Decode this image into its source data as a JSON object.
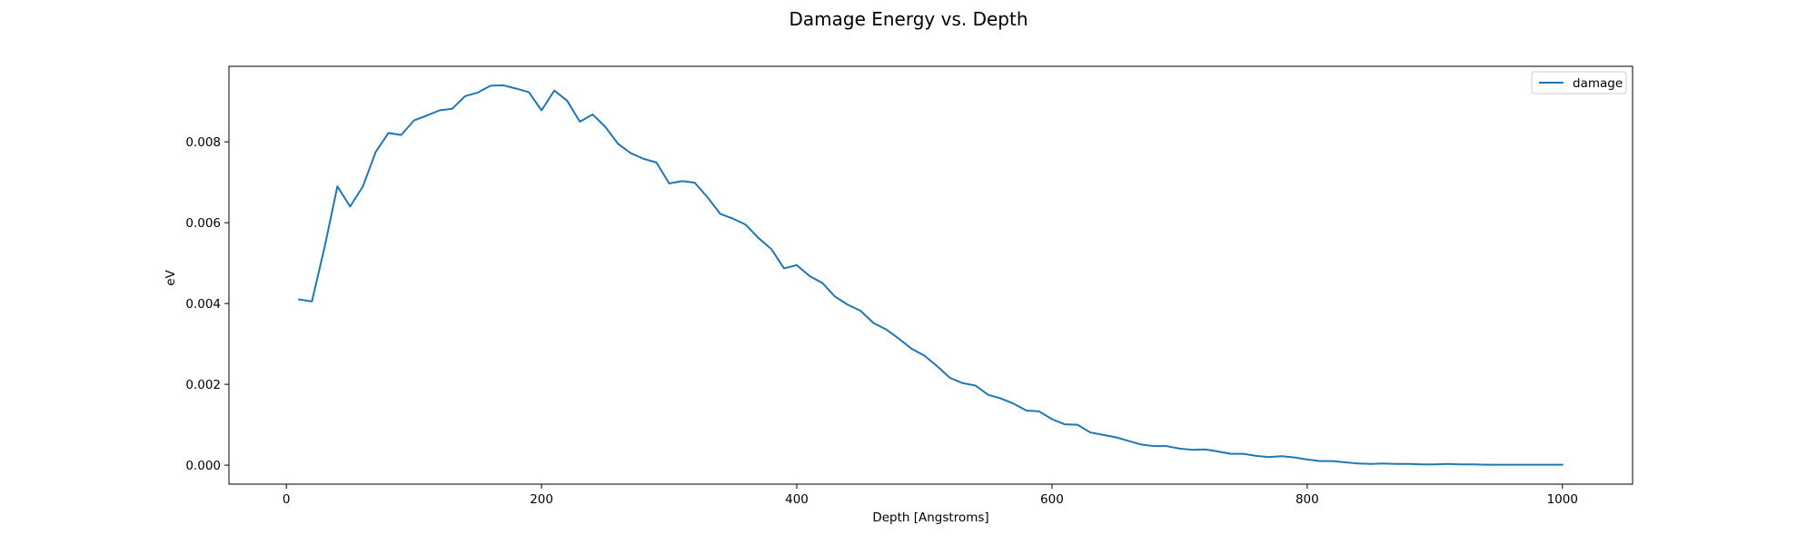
{
  "chart_data": {
    "type": "line",
    "title": "Damage Energy vs. Depth",
    "xlabel": "Depth [Angstroms]",
    "ylabel": "eV",
    "xlim": [
      -45,
      1055
    ],
    "ylim": [
      -0.00047,
      0.00987
    ],
    "xticks": [
      0,
      200,
      400,
      600,
      800,
      1000
    ],
    "xtick_labels": [
      "0",
      "200",
      "400",
      "600",
      "800",
      "1000"
    ],
    "yticks": [
      0.0,
      0.002,
      0.004,
      0.006,
      0.008
    ],
    "ytick_labels": [
      "0.000",
      "0.002",
      "0.004",
      "0.006",
      "0.008"
    ],
    "grid": false,
    "legend_position": "upper right",
    "series": [
      {
        "name": "damage",
        "color": "#1f77b4",
        "x": [
          10,
          20,
          30,
          40,
          50,
          60,
          70,
          80,
          90,
          100,
          110,
          120,
          130,
          140,
          150,
          160,
          170,
          180,
          190,
          200,
          210,
          220,
          230,
          240,
          250,
          260,
          270,
          280,
          290,
          300,
          310,
          320,
          330,
          340,
          350,
          360,
          370,
          380,
          390,
          400,
          410,
          420,
          430,
          440,
          450,
          460,
          470,
          480,
          490,
          500,
          510,
          520,
          530,
          540,
          550,
          560,
          570,
          580,
          590,
          600,
          610,
          620,
          630,
          640,
          650,
          660,
          670,
          680,
          690,
          700,
          710,
          720,
          730,
          740,
          750,
          760,
          770,
          780,
          790,
          800,
          810,
          820,
          830,
          840,
          850,
          860,
          870,
          880,
          890,
          900,
          910,
          920,
          930,
          940,
          950,
          960,
          970,
          980,
          990,
          1000
        ],
        "y": [
          0.0041,
          0.00405,
          0.0054,
          0.0069,
          0.0064,
          0.0069,
          0.00775,
          0.00822,
          0.00817,
          0.00853,
          0.00865,
          0.00878,
          0.00882,
          0.00913,
          0.00922,
          0.00939,
          0.0094,
          0.00932,
          0.00923,
          0.00878,
          0.00927,
          0.00902,
          0.0085,
          0.00868,
          0.00837,
          0.00795,
          0.00772,
          0.00758,
          0.00749,
          0.00697,
          0.00703,
          0.00699,
          0.00663,
          0.00622,
          0.0061,
          0.00595,
          0.00562,
          0.00535,
          0.00487,
          0.00495,
          0.00468,
          0.00451,
          0.00417,
          0.00397,
          0.00382,
          0.00352,
          0.00336,
          0.00313,
          0.00288,
          0.00271,
          0.00245,
          0.00216,
          0.00203,
          0.00197,
          0.00174,
          0.00165,
          0.00152,
          0.00135,
          0.00133,
          0.00114,
          0.00101,
          0.001,
          0.00081,
          0.00075,
          0.00069,
          0.0006,
          0.00051,
          0.00047,
          0.00047,
          0.00041,
          0.00038,
          0.00039,
          0.00034,
          0.00028,
          0.00028,
          0.00023,
          0.0002,
          0.00022,
          0.00019,
          0.00014,
          0.0001,
          0.0001,
          7e-05,
          4e-05,
          3e-05,
          4e-05,
          3e-05,
          3e-05,
          2e-05,
          2e-05,
          3e-05,
          2e-05,
          2e-05,
          1e-05,
          1e-05,
          1e-05,
          1e-05,
          1e-05,
          1e-05,
          1e-05
        ]
      }
    ]
  }
}
